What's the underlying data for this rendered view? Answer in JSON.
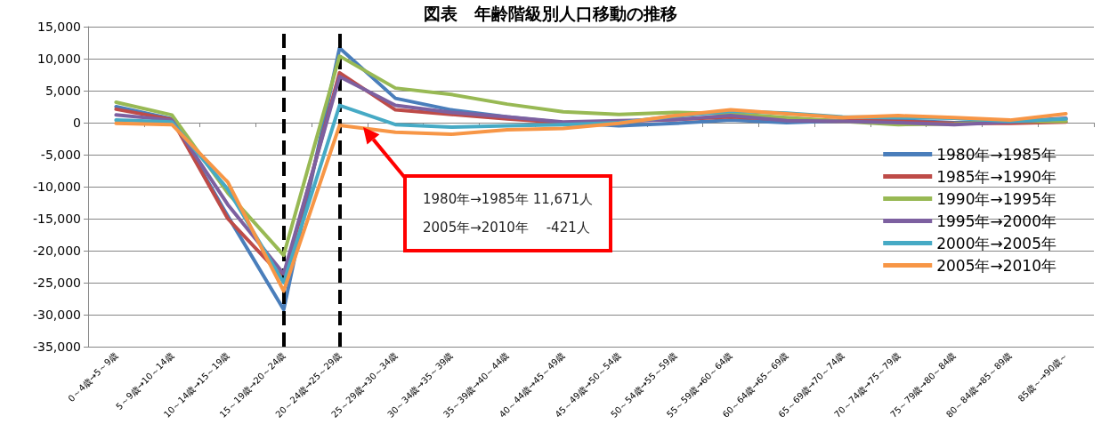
{
  "chart_data": {
    "type": "line",
    "title": "図表　年齢階級別人口移動の推移",
    "categories": [
      "0～4歳→5～9歳",
      "5～9歳→10～14歳",
      "10～14歳→15～19歳",
      "15～19歳→20～24歳",
      "20～24歳→25～29歳",
      "25～29歳→30～34歳",
      "30～34歳→35～39歳",
      "35～39歳→40～44歳",
      "40～44歳→45～49歳",
      "45～49歳→50～54歳",
      "50～54歳→55～59歳",
      "55～59歳→60～64歳",
      "60～64歳→65～69歳",
      "65～69歳→70～74歳",
      "70～74歳→75～79歳",
      "75～79歳→80～84歳",
      "80～84歳→85～89歳",
      "85歳～→90歳～"
    ],
    "series": [
      {
        "name": "1980年→1985年",
        "color": "#4a7ebb",
        "values": [
          2500,
          600,
          -14600,
          -29200,
          11671,
          3800,
          2000,
          900,
          0,
          -500,
          -100,
          400,
          0,
          300,
          400,
          0,
          200,
          500
        ]
      },
      {
        "name": "1985年→1990年",
        "color": "#be4b48",
        "values": [
          2100,
          500,
          -15000,
          -24300,
          7800,
          2000,
          1300,
          600,
          0,
          200,
          500,
          900,
          500,
          300,
          200,
          -100,
          -100,
          100
        ]
      },
      {
        "name": "1990年→1995年",
        "color": "#98b954",
        "values": [
          3200,
          1200,
          -11000,
          -20700,
          10400,
          5400,
          4400,
          2900,
          1700,
          1300,
          1600,
          1400,
          800,
          200,
          -300,
          -200,
          200,
          200
        ]
      },
      {
        "name": "1995年→2000年",
        "color": "#7d60a0",
        "values": [
          1200,
          400,
          -12800,
          -23600,
          7200,
          2700,
          1600,
          900,
          100,
          300,
          500,
          1100,
          300,
          200,
          0,
          -300,
          100,
          700
        ]
      },
      {
        "name": "2000年→2005年",
        "color": "#46aac5",
        "values": [
          400,
          100,
          -10400,
          -25000,
          2700,
          -300,
          -700,
          -500,
          -300,
          0,
          1000,
          1800,
          1500,
          900,
          800,
          700,
          200,
          600
        ]
      },
      {
        "name": "2005年→2010年",
        "color": "#f79646",
        "values": [
          -100,
          -300,
          -9300,
          -26300,
          -421,
          -1500,
          -1800,
          -1100,
          -900,
          -100,
          1100,
          2000,
          1400,
          800,
          1100,
          800,
          400,
          1400
        ]
      }
    ],
    "ylim": [
      -35000,
      15000
    ],
    "yticks": [
      {
        "value": -35000,
        "label": "-35,000"
      },
      {
        "value": -30000,
        "label": "-30,000"
      },
      {
        "value": -25000,
        "label": "-25,000"
      },
      {
        "value": -20000,
        "label": "-20,000"
      },
      {
        "value": -15000,
        "label": "-15,000"
      },
      {
        "value": -10000,
        "label": "-10,000"
      },
      {
        "value": -5000,
        "label": "-5,000"
      },
      {
        "value": 0,
        "label": "0"
      },
      {
        "value": 5000,
        "label": "5,000"
      },
      {
        "value": 10000,
        "label": "10,000"
      },
      {
        "value": 15000,
        "label": "15,000"
      }
    ],
    "ref_lines": [
      {
        "axis": "x",
        "value": "15～19歳→20～24歳",
        "color": "#000000",
        "line_style": "dashed"
      },
      {
        "axis": "x",
        "value": "20～24歳→25～29歳",
        "color": "#000000",
        "line_style": "dashed"
      }
    ],
    "annotations": [
      "1980年→1985年 11,671人",
      "2005年→2010年　 -421人"
    ],
    "grid": "y",
    "legend": "right",
    "marker": "none",
    "line_style": "solid"
  }
}
